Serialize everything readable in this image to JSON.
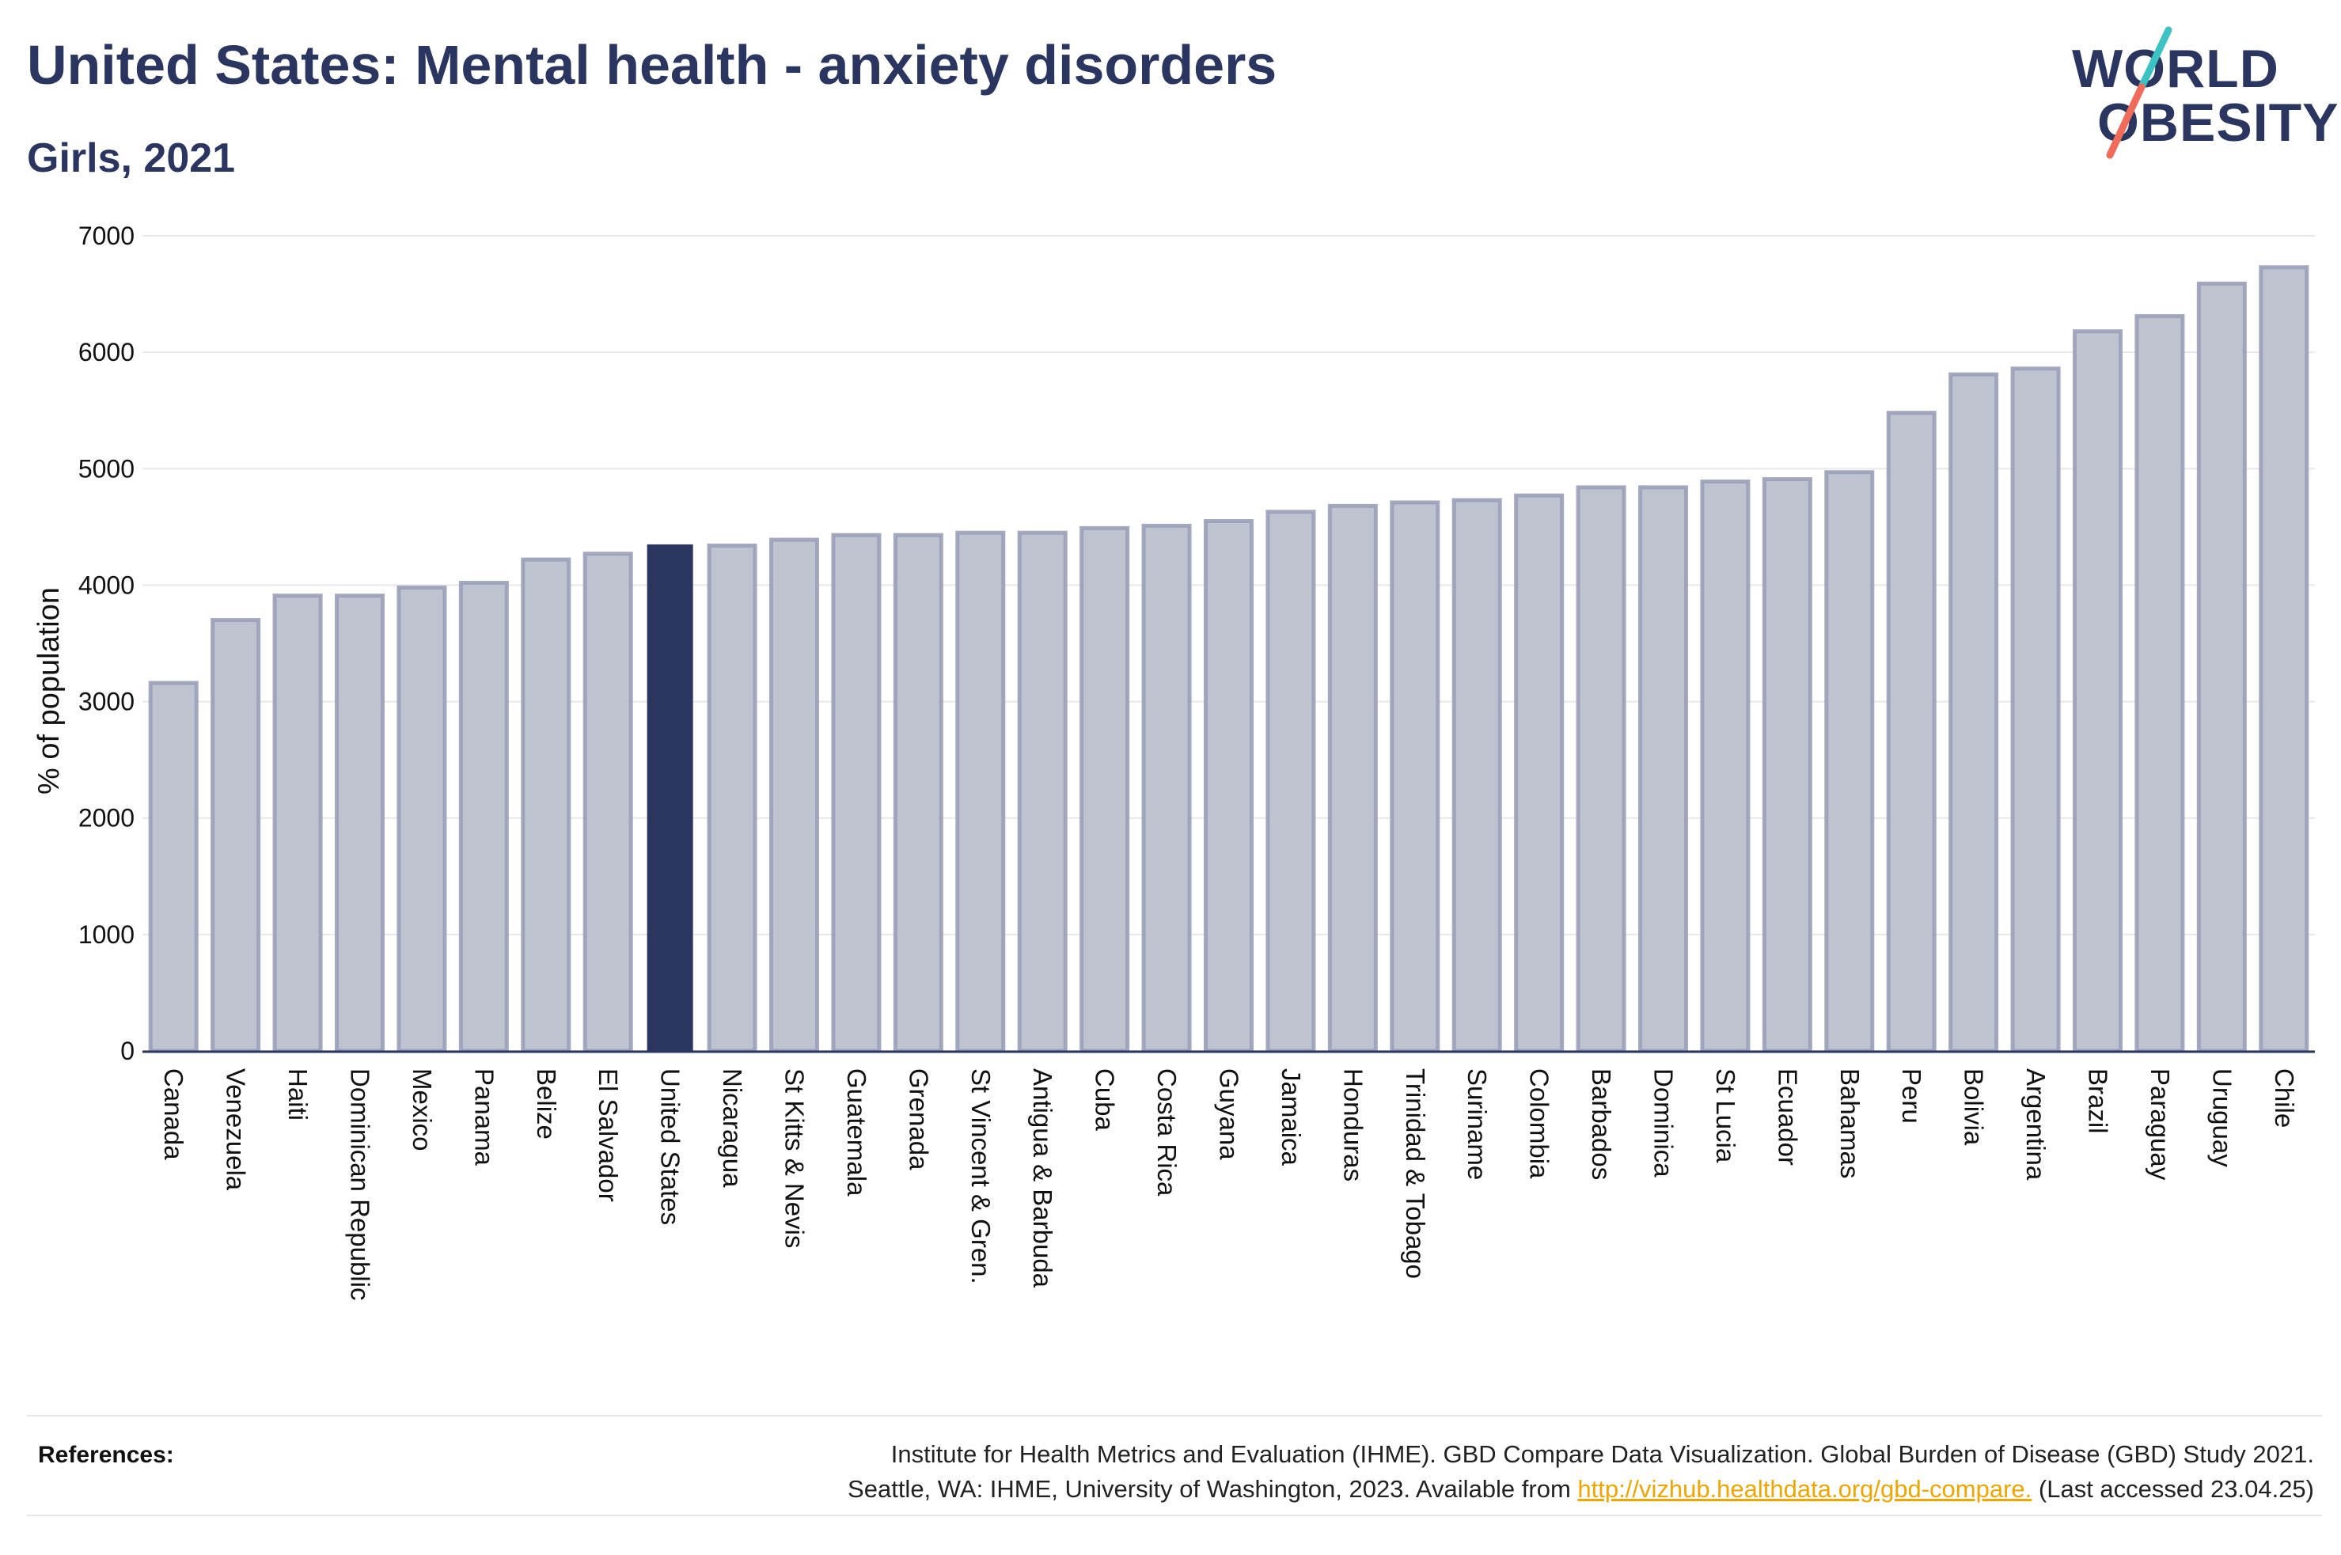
{
  "header": {
    "title": "United States: Mental health - anxiety disorders",
    "subtitle": "Girls, 2021"
  },
  "logo": {
    "line1": "WORLD",
    "line2": "OBESITY",
    "colors": {
      "text": "#2a3560",
      "slash_top": "#3cc2c2",
      "slash_bottom": "#f06b5a"
    }
  },
  "chart_data": {
    "type": "bar",
    "ylabel": "% of population",
    "xlabel": "",
    "ylim": [
      0,
      7000
    ],
    "yticks": [
      0,
      1000,
      2000,
      3000,
      4000,
      5000,
      6000,
      7000
    ],
    "grid": true,
    "highlight": "United States",
    "colors": {
      "bar": "#bfc3d0",
      "bar_edge": "#9aa0b8",
      "highlight": "#2a3560",
      "grid": "#e8e8ec",
      "axis": "#2a3560"
    },
    "categories": [
      "Canada",
      "Venezuela",
      "Haiti",
      "Dominican Republic",
      "Mexico",
      "Panama",
      "Belize",
      "El Salvador",
      "United States",
      "Nicaragua",
      "St Kitts & Nevis",
      "Guatemala",
      "Grenada",
      "St Vincent & Gren.",
      "Antigua & Barbuda",
      "Cuba",
      "Costa Rica",
      "Guyana",
      "Jamaica",
      "Honduras",
      "Trinidad & Tobago",
      "Suriname",
      "Colombia",
      "Barbados",
      "Dominica",
      "St Lucia",
      "Ecuador",
      "Bahamas",
      "Peru",
      "Bolivia",
      "Argentina",
      "Brazil",
      "Paraguay",
      "Uruguay",
      "Chile"
    ],
    "values": [
      3160,
      3700,
      3910,
      3910,
      3980,
      4020,
      4220,
      4270,
      4350,
      4340,
      4390,
      4430,
      4430,
      4450,
      4450,
      4490,
      4510,
      4550,
      4630,
      4680,
      4710,
      4730,
      4770,
      4840,
      4840,
      4890,
      4910,
      4970,
      5480,
      5810,
      5860,
      6180,
      6310,
      6590,
      6730
    ]
  },
  "references": {
    "label": "References:",
    "line1": "Institute for Health Metrics and Evaluation (IHME). GBD Compare Data Visualization. Global Burden of Disease (GBD) Study 2021.",
    "line2_prefix": "Seattle, WA: IHME, University of Washington, 2023. Available from ",
    "link": "http://vizhub.healthdata.org/gbd-compare.",
    "line2_suffix": " (Last accessed 23.04.25)"
  }
}
